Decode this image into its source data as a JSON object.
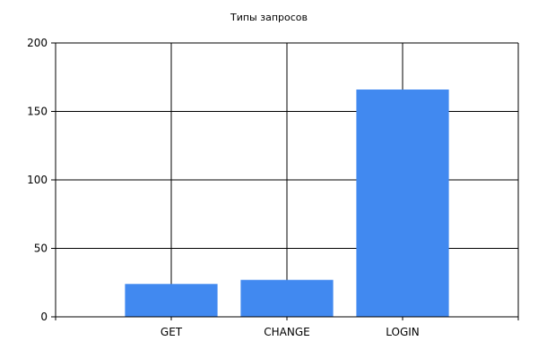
{
  "chart_data": {
    "type": "bar",
    "title": "Типы запросов",
    "categories": [
      "GET",
      "CHANGE",
      "LOGIN"
    ],
    "values": [
      24,
      27,
      166
    ],
    "ylim": [
      0,
      200
    ],
    "yticks": [
      0,
      50,
      100,
      150,
      200
    ],
    "grid": true,
    "bar_color": "#4189f0",
    "xlabel": "",
    "ylabel": ""
  }
}
